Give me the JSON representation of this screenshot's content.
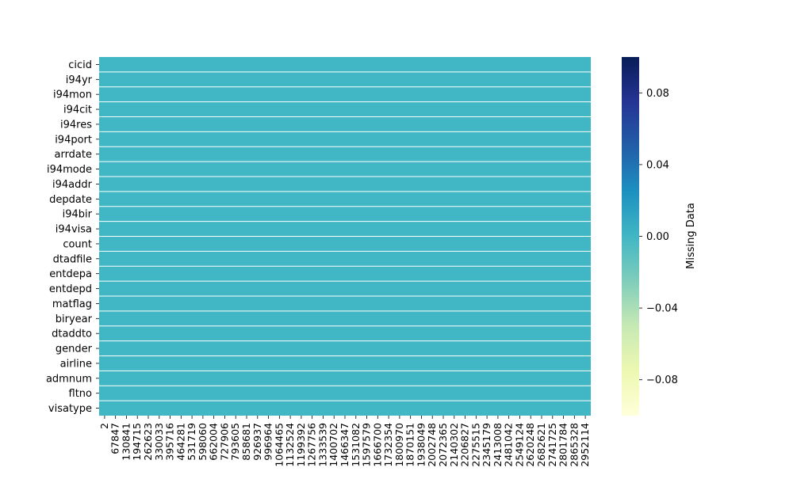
{
  "chart_data": {
    "type": "heatmap",
    "rows": [
      "cicid",
      "i94yr",
      "i94mon",
      "i94cit",
      "i94res",
      "i94port",
      "arrdate",
      "i94mode",
      "i94addr",
      "depdate",
      "i94bir",
      "i94visa",
      "count",
      "dtadfile",
      "entdepa",
      "entdepd",
      "matflag",
      "biryear",
      "dtaddto",
      "gender",
      "airline",
      "admnum",
      "fltno",
      "visatype"
    ],
    "x_tick_labels": [
      "2",
      "67847",
      "130841",
      "194715",
      "262623",
      "330033",
      "395716",
      "464281",
      "531719",
      "598060",
      "662004",
      "727906",
      "793605",
      "858681",
      "926937",
      "996964",
      "1064465",
      "1132524",
      "1199392",
      "1267756",
      "1333539",
      "1400702",
      "1466347",
      "1531082",
      "1597579",
      "1666700",
      "1732354",
      "1800970",
      "1870151",
      "1938049",
      "2002748",
      "2072365",
      "2140302",
      "2206827",
      "2275515",
      "2345179",
      "2413008",
      "2481042",
      "2549124",
      "2620248",
      "2682621",
      "2741725",
      "2801784",
      "2865328",
      "2952114"
    ],
    "cell_value_all": 0.0,
    "cell_color": "#41b6c4",
    "colorbar": {
      "label": "Missing Data",
      "range": [
        -0.1,
        0.1
      ],
      "ticks": [
        0.08,
        0.04,
        0.0,
        -0.04,
        -0.08
      ],
      "tick_labels": [
        "0.08",
        "0.04",
        "0.00",
        "−0.04",
        "−0.08"
      ],
      "colormap": "YlGnBu",
      "colors": [
        "#ffffd9",
        "#edf8b1",
        "#c7e9b4",
        "#7fcdbb",
        "#41b6c4",
        "#1d91c0",
        "#225ea8",
        "#253494",
        "#081d58"
      ]
    },
    "grid_lines_between_rows": true
  }
}
